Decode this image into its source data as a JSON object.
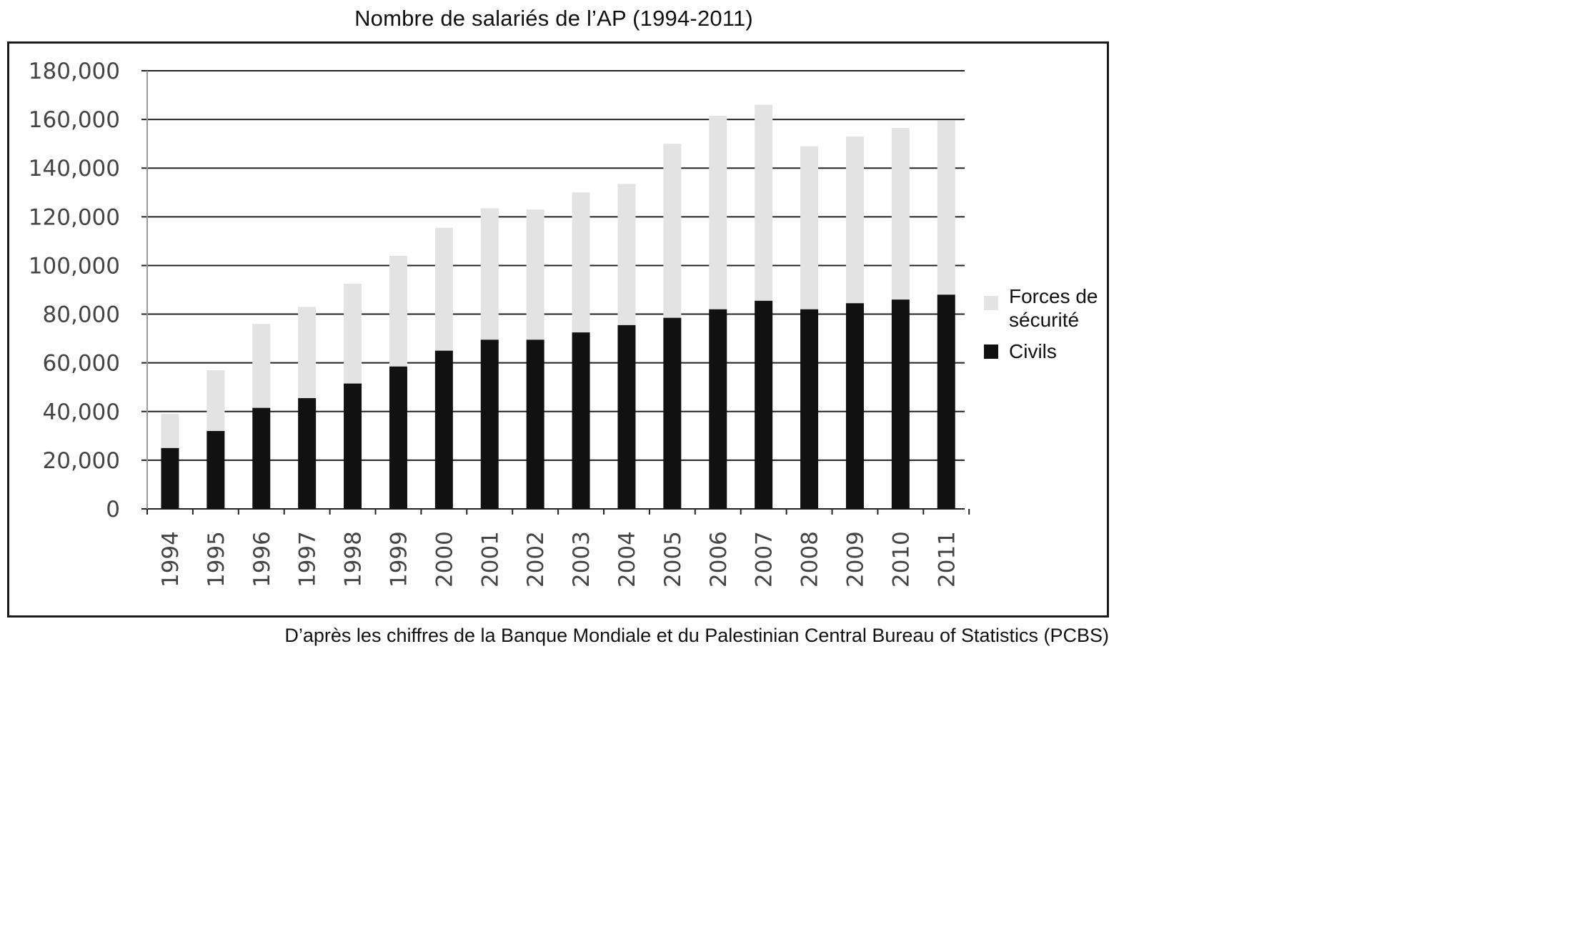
{
  "title": "Nombre de salariés de l’AP (1994-2011)",
  "source": "D’après les chiffres de la Banque Mondiale et du Palestinian Central Bureau of Statistics (PCBS)",
  "colors": {
    "civils": "#111111",
    "securite": "#e3e3e3",
    "grid": "#222222",
    "frame": "#1a1a1a"
  },
  "chart_data": {
    "type": "bar",
    "stacked": true,
    "title": "Nombre de salariés de l’AP (1994-2011)",
    "xlabel": "",
    "ylabel": "",
    "ylim": [
      0,
      180000
    ],
    "yticks": [
      0,
      20000,
      40000,
      60000,
      80000,
      100000,
      120000,
      140000,
      160000,
      180000
    ],
    "ytick_labels": [
      "0",
      "20,000",
      "40,000",
      "60,000",
      "80,000",
      "100,000",
      "120,000",
      "140,000",
      "160,000",
      "180,000"
    ],
    "grid": true,
    "legend_position": "right",
    "categories": [
      "1994",
      "1995",
      "1996",
      "1997",
      "1998",
      "1999",
      "2000",
      "2001",
      "2002",
      "2003",
      "2004",
      "2005",
      "2006",
      "2007",
      "2008",
      "2009",
      "2010",
      "2011"
    ],
    "series": [
      {
        "name": "Civils",
        "color": "#111111",
        "values": [
          25000,
          32000,
          41500,
          45500,
          51500,
          58500,
          65000,
          69500,
          69500,
          72500,
          75500,
          78500,
          82000,
          85500,
          82000,
          84500,
          86000,
          88000
        ]
      },
      {
        "name": "Forces de sécurité",
        "color": "#e3e3e3",
        "values": [
          14000,
          25000,
          34500,
          37500,
          41000,
          45500,
          50500,
          54000,
          53500,
          57500,
          58000,
          71500,
          79500,
          80500,
          67000,
          68500,
          70500,
          71500
        ]
      }
    ],
    "legend": {
      "securite_lines": [
        "Forces de",
        "sécurité"
      ],
      "civils": "Civils"
    }
  }
}
